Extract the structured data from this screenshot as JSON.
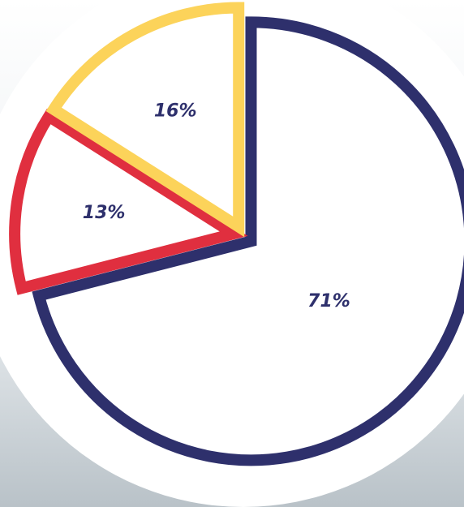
{
  "chart_data": {
    "type": "pie",
    "categories": [
      null,
      null,
      null
    ],
    "values": [
      71,
      13,
      16
    ],
    "value_labels": [
      "71%",
      "13%",
      "16%"
    ],
    "colors": [
      "#2e306c",
      "#e02f3f",
      "#fcd35a"
    ],
    "label_color": "#2e306c"
  }
}
